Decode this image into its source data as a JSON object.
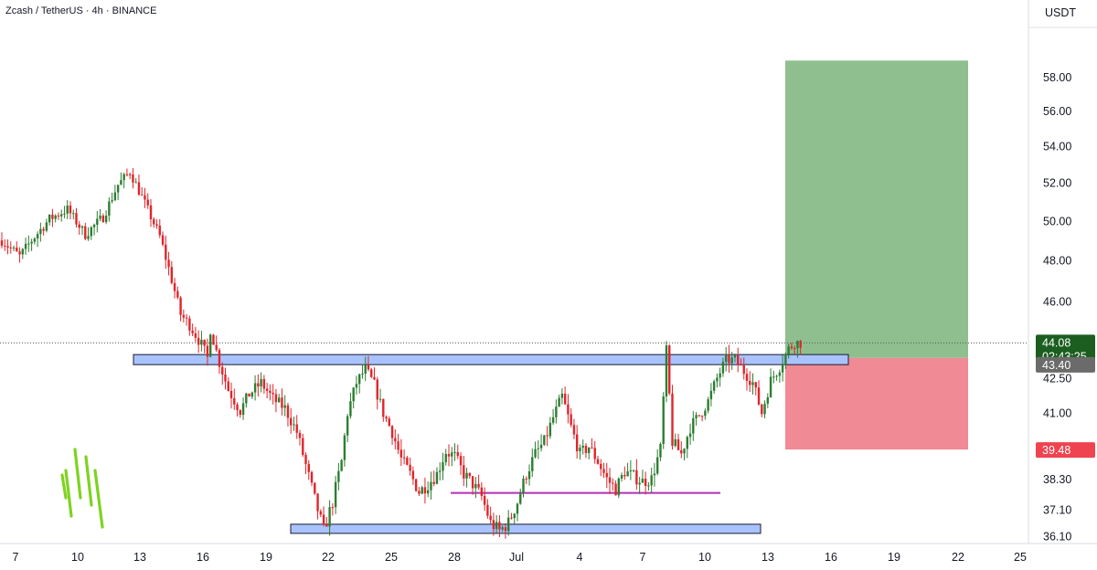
{
  "title": "Zcash / TetherUS · 4h · BINANCE",
  "currency": "USDT",
  "colors": {
    "up": "#089981",
    "up_body": "#2e7d32",
    "down": "#e0252b",
    "zone": "#a9c3ff",
    "zone_border": "#1a1a2e",
    "target": "#8fbf8f",
    "stop": "#f08a94",
    "support_line": "#b32fb5",
    "price_tag": "#1b5e20",
    "entry_tag": "#6b6b6b",
    "stop_tag": "#ef4350"
  },
  "chart_data": {
    "type": "candlestick",
    "symbol": "Zcash / TetherUS",
    "interval": "4h",
    "exchange": "BINANCE",
    "xlabel": "",
    "ylabel": "",
    "ylim": [
      35.5,
      59.5
    ],
    "y_scale": "log",
    "grid": false,
    "x_ticks": [
      "7",
      "10",
      "13",
      "16",
      "19",
      "22",
      "25",
      "28",
      "Jul",
      "4",
      "7",
      "10",
      "13",
      "16",
      "19",
      "22",
      "25"
    ],
    "y_ticks": [
      "58.00",
      "56.00",
      "54.00",
      "52.00",
      "50.00",
      "48.00",
      "46.00",
      "42.50",
      "41.00",
      "38.30",
      "37.10",
      "36.10"
    ],
    "price_tags": {
      "current": "44.08",
      "countdown": "02:43:25",
      "entry": "43.40",
      "stop": "39.48"
    },
    "zones": [
      {
        "name": "resistance",
        "from": 43.1,
        "to": 43.55
      },
      {
        "name": "support",
        "from": 36.25,
        "to": 36.55
      }
    ],
    "support_line": 37.75,
    "position": {
      "entry": 43.4,
      "target": 59.0,
      "stop": 39.48
    },
    "price_path": [
      [
        0,
        49.0
      ],
      [
        6,
        48.2
      ],
      [
        10,
        49.0
      ],
      [
        16,
        50.1
      ],
      [
        22,
        50.6
      ],
      [
        28,
        49.3
      ],
      [
        34,
        50.2
      ],
      [
        39,
        51.9
      ],
      [
        43,
        52.6
      ],
      [
        48,
        50.9
      ],
      [
        53,
        49.2
      ],
      [
        56,
        47.6
      ],
      [
        60,
        45.4
      ],
      [
        63,
        44.9
      ],
      [
        67,
        44.0
      ],
      [
        69,
        43.4
      ],
      [
        70,
        44.7
      ],
      [
        73,
        43.2
      ],
      [
        76,
        42.0
      ],
      [
        80,
        41.1
      ],
      [
        83,
        41.8
      ],
      [
        87,
        42.3
      ],
      [
        91,
        41.6
      ],
      [
        95,
        41.2
      ],
      [
        99,
        40.2
      ],
      [
        103,
        38.4
      ],
      [
        105,
        37.5
      ],
      [
        108,
        36.3
      ],
      [
        111,
        37.4
      ],
      [
        114,
        39.0
      ],
      [
        116,
        41.0
      ],
      [
        119,
        42.3
      ],
      [
        122,
        42.9
      ],
      [
        125,
        42.2
      ],
      [
        128,
        41.0
      ],
      [
        131,
        40.2
      ],
      [
        134,
        39.1
      ],
      [
        137,
        38.5
      ],
      [
        140,
        37.8
      ],
      [
        143,
        38.1
      ],
      [
        146,
        38.5
      ],
      [
        149,
        39.4
      ],
      [
        152,
        39.2
      ],
      [
        155,
        38.5
      ],
      [
        158,
        38.1
      ],
      [
        161,
        37.6
      ],
      [
        164,
        36.6
      ],
      [
        167,
        36.3
      ],
      [
        170,
        36.6
      ],
      [
        173,
        37.4
      ],
      [
        176,
        38.5
      ],
      [
        179,
        39.3
      ],
      [
        182,
        39.8
      ],
      [
        185,
        40.8
      ],
      [
        188,
        41.7
      ],
      [
        191,
        40.4
      ],
      [
        194,
        39.3
      ],
      [
        197,
        39.6
      ],
      [
        200,
        39.0
      ],
      [
        203,
        38.3
      ],
      [
        206,
        37.9
      ],
      [
        209,
        38.6
      ],
      [
        212,
        38.4
      ],
      [
        215,
        38.2
      ],
      [
        218,
        38.3
      ],
      [
        221,
        39.5
      ],
      [
        223,
        43.7
      ],
      [
        225,
        39.8
      ],
      [
        228,
        39.3
      ],
      [
        231,
        40.4
      ],
      [
        234,
        40.9
      ],
      [
        237,
        41.5
      ],
      [
        240,
        42.5
      ],
      [
        243,
        43.3
      ],
      [
        246,
        43.3
      ],
      [
        249,
        42.8
      ],
      [
        252,
        42.3
      ],
      [
        255,
        41.0
      ],
      [
        258,
        42.4
      ],
      [
        261,
        43.0
      ],
      [
        264,
        43.8
      ],
      [
        266,
        44.1
      ],
      [
        268,
        44.08
      ]
    ]
  }
}
